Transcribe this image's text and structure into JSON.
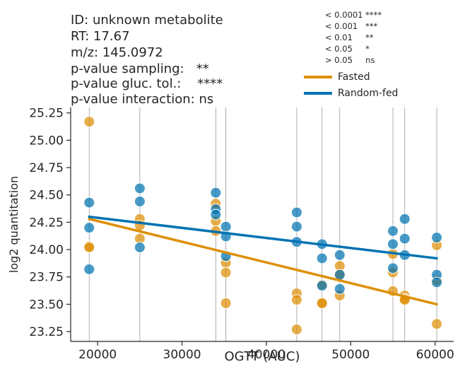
{
  "title_block": {
    "lines": [
      "ID: unknown metabolite",
      "RT: 17.67",
      "m/z: 145.0972",
      "p-value sampling:   **",
      "p-value gluc. tol.:    ****",
      "p-value interaction: ns"
    ]
  },
  "significance_legend": [
    "< 0.0001 ****",
    "< 0.001   ***",
    "< 0.01     **",
    "< 0.05     *",
    "> 0.05     ns"
  ],
  "legend": [
    {
      "label": "Fasted",
      "color": "#de8f05"
    },
    {
      "label": "Random-fed",
      "color": "#0173b2"
    }
  ],
  "chart_data": {
    "type": "scatter",
    "xlabel": "OGTT (AUC)",
    "ylabel": "log2 quantitation",
    "xlim": [
      16800,
      62200
    ],
    "ylim": [
      23.16,
      25.3
    ],
    "xticks": [
      20000,
      30000,
      40000,
      50000,
      60000
    ],
    "xtick_labels": [
      "20000",
      "30000",
      "40000",
      "50000",
      "60000"
    ],
    "yticks": [
      23.25,
      23.5,
      23.75,
      24.0,
      24.25,
      24.5,
      24.75,
      25.0,
      25.25
    ],
    "ytick_labels": [
      "23.25",
      "23.50",
      "23.75",
      "24.00",
      "24.25",
      "24.50",
      "24.75",
      "25.00",
      "25.25"
    ],
    "vlines": [
      19000,
      25000,
      34000,
      35200,
      43600,
      46600,
      48700,
      55000,
      56400,
      60200
    ],
    "series": [
      {
        "name": "Fasted",
        "color": "#de8f05",
        "points": [
          [
            19000,
            25.17
          ],
          [
            19000,
            24.03
          ],
          [
            19000,
            24.02
          ],
          [
            25000,
            24.28
          ],
          [
            25000,
            24.22
          ],
          [
            25000,
            24.1
          ],
          [
            34000,
            24.42
          ],
          [
            34000,
            24.26
          ],
          [
            34000,
            24.17
          ],
          [
            35200,
            23.88
          ],
          [
            35200,
            23.79
          ],
          [
            35200,
            23.51
          ],
          [
            43600,
            23.6
          ],
          [
            43600,
            23.54
          ],
          [
            43600,
            23.27
          ],
          [
            46600,
            23.68
          ],
          [
            46600,
            23.51
          ],
          [
            46600,
            23.51
          ],
          [
            48700,
            23.85
          ],
          [
            48700,
            23.77
          ],
          [
            48700,
            23.58
          ],
          [
            55000,
            23.96
          ],
          [
            55000,
            23.79
          ],
          [
            55000,
            23.62
          ],
          [
            56400,
            23.58
          ],
          [
            56400,
            23.55
          ],
          [
            56400,
            23.54
          ],
          [
            60200,
            24.04
          ],
          [
            60200,
            23.72
          ],
          [
            60200,
            23.32
          ]
        ],
        "fit": [
          [
            19000,
            24.28
          ],
          [
            60200,
            23.5
          ]
        ]
      },
      {
        "name": "Random-fed",
        "color": "#0173b2",
        "points": [
          [
            19000,
            24.43
          ],
          [
            19000,
            24.2
          ],
          [
            19000,
            23.82
          ],
          [
            25000,
            24.56
          ],
          [
            25000,
            24.44
          ],
          [
            25000,
            24.02
          ],
          [
            34000,
            24.52
          ],
          [
            34000,
            24.37
          ],
          [
            34000,
            24.32
          ],
          [
            35200,
            24.21
          ],
          [
            35200,
            24.12
          ],
          [
            35200,
            23.94
          ],
          [
            43600,
            24.34
          ],
          [
            43600,
            24.21
          ],
          [
            43600,
            24.07
          ],
          [
            46600,
            24.05
          ],
          [
            46600,
            23.92
          ],
          [
            46600,
            23.67
          ],
          [
            48700,
            23.95
          ],
          [
            48700,
            23.77
          ],
          [
            48700,
            23.64
          ],
          [
            55000,
            24.17
          ],
          [
            55000,
            24.05
          ],
          [
            55000,
            23.83
          ],
          [
            56400,
            24.28
          ],
          [
            56400,
            24.1
          ],
          [
            56400,
            23.95
          ],
          [
            60200,
            24.11
          ],
          [
            60200,
            23.77
          ],
          [
            60200,
            23.7
          ]
        ],
        "fit": [
          [
            19000,
            24.3
          ],
          [
            60200,
            23.92
          ]
        ]
      }
    ]
  }
}
